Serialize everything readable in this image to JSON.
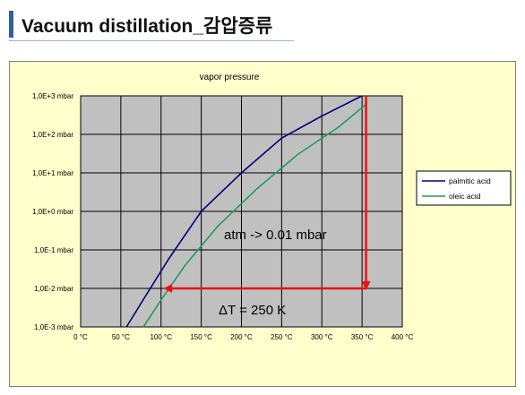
{
  "header": {
    "title": "Vacuum distillation_감압증류",
    "accent_color": "#2b5fa8"
  },
  "chart_data": {
    "type": "line",
    "title": "vapor pressure",
    "xlabel": "",
    "ylabel": "",
    "x_ticks": [
      "0 °C",
      "50 °C",
      "100 °C",
      "150 °C",
      "200 °C",
      "250 °C",
      "300 °C",
      "350 °C",
      "400 °C"
    ],
    "y_ticks": [
      "1,0E-3 mbar",
      "1,0E-2 mbar",
      "1,0E-1 mbar",
      "1,0E+0 mbar",
      "1,0E+1 mbar",
      "1,0E+2 mbar",
      "1,0E+3 mbar"
    ],
    "xlim": [
      0,
      400
    ],
    "y_scale": "log",
    "ylim": [
      0.001,
      1000
    ],
    "grid": true,
    "legend_position": "right",
    "plot_background": "#c0c0c0",
    "frame_background": "#ffffcc",
    "series": [
      {
        "name": "palmitic acid",
        "color": "#00007a",
        "x": [
          57,
          80,
          110,
          150,
          200,
          250,
          300,
          350
        ],
        "y": [
          0.001,
          0.006,
          0.06,
          1.0,
          10,
          80,
          300,
          1000
        ]
      },
      {
        "name": "oleic acid",
        "color": "#229966",
        "x": [
          78,
          100,
          130,
          170,
          220,
          270,
          320,
          355
        ],
        "y": [
          0.001,
          0.005,
          0.04,
          0.4,
          4,
          30,
          150,
          600
        ]
      }
    ],
    "annotations": [
      {
        "text": "atm -> 0.01 mbar",
        "x": 0,
        "y": 0
      },
      {
        "text": "ΔT = 250 K",
        "x": 0,
        "y": 0
      }
    ],
    "arrow_color": "#ee1111",
    "arrows": [
      {
        "from_x": 355,
        "from_y": 1000,
        "to_x": 355,
        "to_y": 0.01
      },
      {
        "from_x": 355,
        "from_y": 0.01,
        "to_x": 105,
        "to_y": 0.01
      }
    ]
  }
}
